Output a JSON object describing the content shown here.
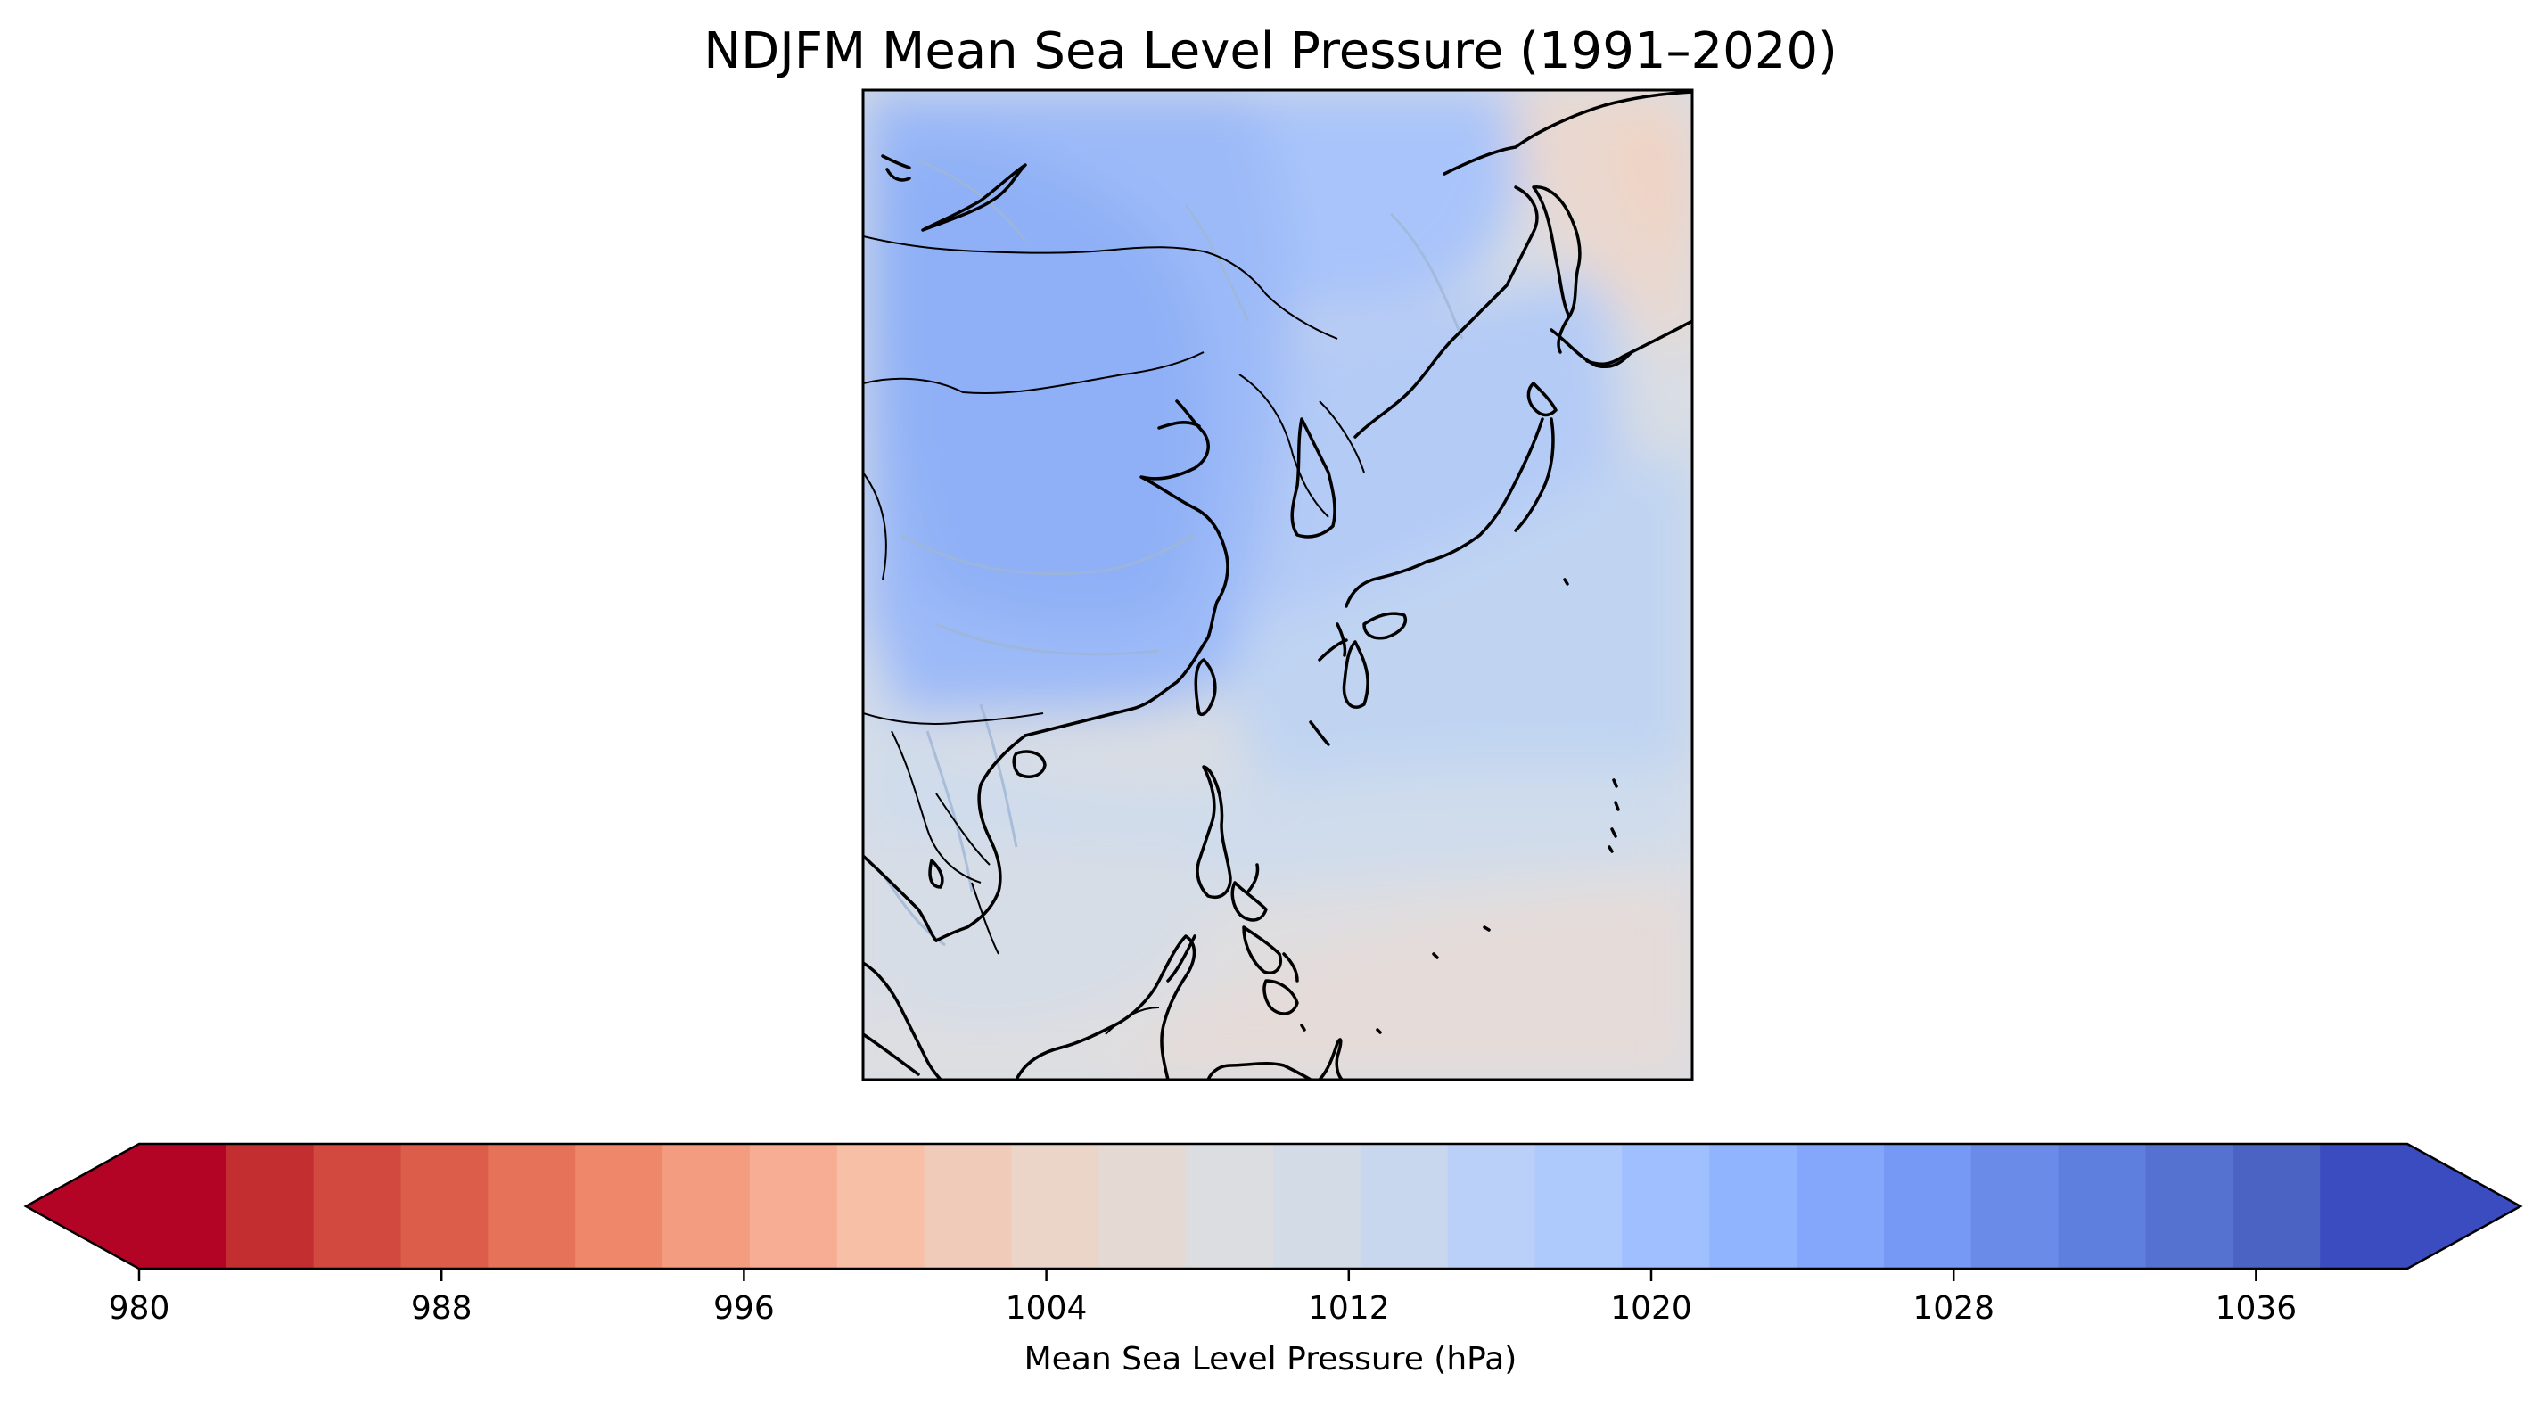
{
  "title": "NDJFM Mean Sea Level Pressure (1991–2020)",
  "colorbar": {
    "label": "Mean Sea Level Pressure (hPa)",
    "min": 980,
    "max": 1040,
    "step": 2,
    "extend": "both",
    "colormap": "coolwarm_r",
    "ticks": [
      "980",
      "988",
      "996",
      "1004",
      "1012",
      "1020",
      "1028",
      "1036"
    ],
    "colors": [
      "#b40426",
      "#c32e31",
      "#d1493f",
      "#dc5d4a",
      "#e67259",
      "#ef886b",
      "#f39c7f",
      "#f6ad93",
      "#f6bfa6",
      "#f1cbb9",
      "#ebd4c8",
      "#e4d9d3",
      "#dcdde1",
      "#d3dbe7",
      "#c8d7ee",
      "#bad0f8",
      "#aec9fc",
      "#9fbfff",
      "#91b4ff",
      "#84a7fc",
      "#7699f6",
      "#6a8be8",
      "#5f7fde",
      "#5572d0",
      "#4b64c4",
      "#3b4cc0"
    ],
    "under_color": "#b40426",
    "over_color": "#3b4cc0"
  },
  "map": {
    "region": "East Asia and Western Pacific",
    "projection": "PlateCarree",
    "coastlines": true,
    "borders": true,
    "rivers": true,
    "field_colors": {
      "continental_high_core": "#8fb0f6",
      "continental_high": "#9cbaf8",
      "northern_margin": "#a9c4fa",
      "korea_japan": "#b4cbf6",
      "central_pacific": "#c0d4f2",
      "subtropical": "#cfdcec",
      "south_china_sea": "#d7dde6",
      "tropics": "#dfdee0",
      "tropical_low": "#e5dbd8",
      "aleutian_edge": "#ead8cf",
      "aleutian_low": "#f0d3c3"
    }
  }
}
